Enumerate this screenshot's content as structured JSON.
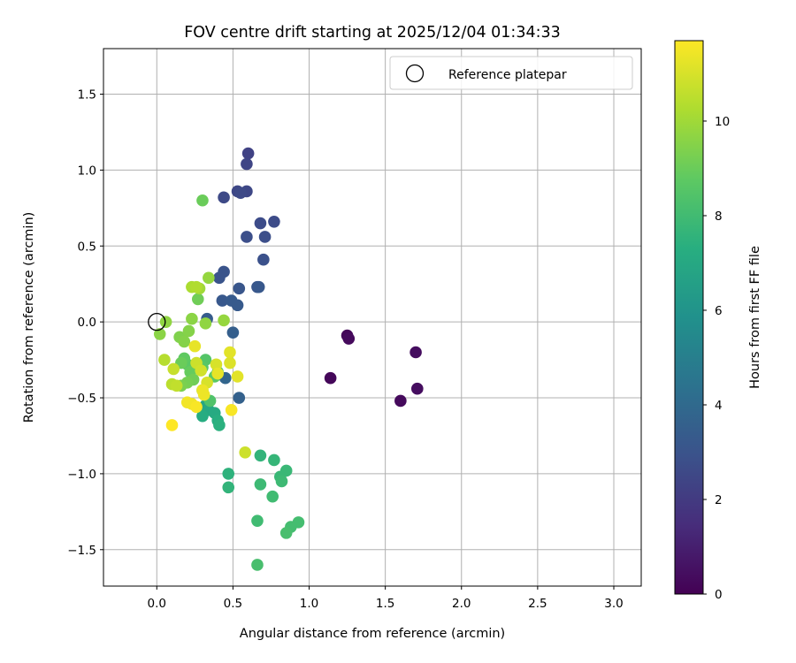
{
  "chart_data": {
    "type": "scatter",
    "title": "FOV centre drift starting at 2025/12/04 01:34:33",
    "xlabel": "Angular distance from reference (arcmin)",
    "ylabel": "Rotation from reference (arcmin)",
    "xlim": [
      -0.35,
      3.18
    ],
    "ylim": [
      -1.74,
      1.8
    ],
    "x_ticks": [
      "0.0",
      "0.5",
      "1.0",
      "1.5",
      "2.0",
      "2.5",
      "3.0"
    ],
    "y_ticks": [
      "−1.5",
      "−1.0",
      "−0.5",
      "0.0",
      "0.5",
      "1.0",
      "1.5"
    ],
    "grid": true,
    "legend": {
      "location": "top-right",
      "entries": [
        "Reference platepar"
      ]
    },
    "reference_point": {
      "x": 0.0,
      "y": 0.0
    },
    "colorbar": {
      "label": "Hours from first FF file",
      "colormap": "viridis",
      "min": 0,
      "max": 11.7,
      "ticks": [
        "0",
        "2",
        "4",
        "6",
        "8",
        "10"
      ]
    },
    "points": [
      {
        "x": 1.14,
        "y": -0.37,
        "t": 0.2
      },
      {
        "x": 1.25,
        "y": -0.09,
        "t": 0.2
      },
      {
        "x": 1.26,
        "y": -0.11,
        "t": 0.3
      },
      {
        "x": 1.6,
        "y": -0.52,
        "t": 0.3
      },
      {
        "x": 1.7,
        "y": -0.2,
        "t": 0.4
      },
      {
        "x": 1.71,
        "y": -0.44,
        "t": 0.4
      },
      {
        "x": 0.6,
        "y": 1.11,
        "t": 2.3
      },
      {
        "x": 0.59,
        "y": 1.04,
        "t": 2.4
      },
      {
        "x": 0.53,
        "y": 0.86,
        "t": 2.5
      },
      {
        "x": 0.59,
        "y": 0.86,
        "t": 2.5
      },
      {
        "x": 0.55,
        "y": 0.85,
        "t": 2.6
      },
      {
        "x": 0.44,
        "y": 0.82,
        "t": 2.6
      },
      {
        "x": 0.68,
        "y": 0.65,
        "t": 2.7
      },
      {
        "x": 0.77,
        "y": 0.66,
        "t": 2.7
      },
      {
        "x": 0.59,
        "y": 0.56,
        "t": 2.8
      },
      {
        "x": 0.71,
        "y": 0.56,
        "t": 2.8
      },
      {
        "x": 0.7,
        "y": 0.41,
        "t": 2.9
      },
      {
        "x": 0.44,
        "y": 0.33,
        "t": 3.0
      },
      {
        "x": 0.41,
        "y": 0.29,
        "t": 3.0
      },
      {
        "x": 0.54,
        "y": 0.22,
        "t": 3.1
      },
      {
        "x": 0.66,
        "y": 0.23,
        "t": 3.1
      },
      {
        "x": 0.67,
        "y": 0.23,
        "t": 3.2
      },
      {
        "x": 0.43,
        "y": 0.14,
        "t": 3.2
      },
      {
        "x": 0.49,
        "y": 0.14,
        "t": 3.3
      },
      {
        "x": 0.53,
        "y": 0.11,
        "t": 3.3
      },
      {
        "x": 0.33,
        "y": 0.02,
        "t": 3.4
      },
      {
        "x": 0.5,
        "y": -0.07,
        "t": 3.5
      },
      {
        "x": 0.54,
        "y": -0.5,
        "t": 3.6
      },
      {
        "x": 0.45,
        "y": -0.37,
        "t": 3.8
      },
      {
        "x": 0.32,
        "y": -0.55,
        "t": 6.9
      },
      {
        "x": 0.34,
        "y": -0.58,
        "t": 7.0
      },
      {
        "x": 0.38,
        "y": -0.6,
        "t": 7.1
      },
      {
        "x": 0.3,
        "y": -0.62,
        "t": 7.2
      },
      {
        "x": 0.4,
        "y": -0.65,
        "t": 7.3
      },
      {
        "x": 0.41,
        "y": -0.68,
        "t": 7.4
      },
      {
        "x": 0.47,
        "y": -1.0,
        "t": 7.5
      },
      {
        "x": 0.47,
        "y": -1.09,
        "t": 7.6
      },
      {
        "x": 0.68,
        "y": -0.88,
        "t": 7.6
      },
      {
        "x": 0.77,
        "y": -0.91,
        "t": 7.7
      },
      {
        "x": 0.85,
        "y": -0.98,
        "t": 7.8
      },
      {
        "x": 0.81,
        "y": -1.02,
        "t": 7.8
      },
      {
        "x": 0.82,
        "y": -1.05,
        "t": 7.9
      },
      {
        "x": 0.68,
        "y": -1.07,
        "t": 7.9
      },
      {
        "x": 0.76,
        "y": -1.15,
        "t": 8.0
      },
      {
        "x": 0.66,
        "y": -1.31,
        "t": 8.0
      },
      {
        "x": 0.93,
        "y": -1.32,
        "t": 8.1
      },
      {
        "x": 0.88,
        "y": -1.35,
        "t": 8.1
      },
      {
        "x": 0.85,
        "y": -1.39,
        "t": 8.2
      },
      {
        "x": 0.66,
        "y": -1.6,
        "t": 8.2
      },
      {
        "x": 0.3,
        "y": 0.8,
        "t": 9.0
      },
      {
        "x": 0.27,
        "y": 0.15,
        "t": 9.1
      },
      {
        "x": 0.35,
        "y": -0.52,
        "t": 8.4
      },
      {
        "x": 0.32,
        "y": -0.25,
        "t": 8.5
      },
      {
        "x": 0.3,
        "y": -0.3,
        "t": 8.6
      },
      {
        "x": 0.2,
        "y": -0.28,
        "t": 8.7
      },
      {
        "x": 0.18,
        "y": -0.24,
        "t": 8.8
      },
      {
        "x": 0.22,
        "y": -0.33,
        "t": 8.9
      },
      {
        "x": 0.16,
        "y": -0.27,
        "t": 9.0
      },
      {
        "x": 0.4,
        "y": -0.33,
        "t": 8.6
      },
      {
        "x": 0.38,
        "y": -0.36,
        "t": 8.7
      },
      {
        "x": 0.3,
        "y": -0.45,
        "t": 8.9
      },
      {
        "x": 0.24,
        "y": -0.38,
        "t": 9.1
      },
      {
        "x": 0.2,
        "y": -0.4,
        "t": 9.2
      },
      {
        "x": 0.16,
        "y": -0.42,
        "t": 9.3
      },
      {
        "x": 0.15,
        "y": -0.1,
        "t": 9.4
      },
      {
        "x": 0.18,
        "y": -0.13,
        "t": 9.5
      },
      {
        "x": 0.21,
        "y": -0.06,
        "t": 9.5
      },
      {
        "x": 0.23,
        "y": 0.02,
        "t": 9.6
      },
      {
        "x": 0.02,
        "y": -0.08,
        "t": 9.6
      },
      {
        "x": 0.06,
        "y": 0.0,
        "t": 9.7
      },
      {
        "x": 0.32,
        "y": -0.01,
        "t": 9.7
      },
      {
        "x": 0.44,
        "y": 0.01,
        "t": 9.8
      },
      {
        "x": 0.34,
        "y": 0.29,
        "t": 9.8
      },
      {
        "x": 0.28,
        "y": 0.22,
        "t": 10.0
      },
      {
        "x": 0.23,
        "y": 0.23,
        "t": 10.2
      },
      {
        "x": 0.26,
        "y": 0.23,
        "t": 10.3
      },
      {
        "x": 0.05,
        "y": -0.25,
        "t": 10.4
      },
      {
        "x": 0.1,
        "y": -0.41,
        "t": 10.5
      },
      {
        "x": 0.13,
        "y": -0.42,
        "t": 10.6
      },
      {
        "x": 0.11,
        "y": -0.31,
        "t": 10.7
      },
      {
        "x": 0.26,
        "y": -0.27,
        "t": 10.8
      },
      {
        "x": 0.29,
        "y": -0.32,
        "t": 10.9
      },
      {
        "x": 0.33,
        "y": -0.4,
        "t": 11.0
      },
      {
        "x": 0.39,
        "y": -0.28,
        "t": 11.0
      },
      {
        "x": 0.48,
        "y": -0.27,
        "t": 11.1
      },
      {
        "x": 0.48,
        "y": -0.2,
        "t": 11.2
      },
      {
        "x": 0.53,
        "y": -0.36,
        "t": 11.2
      },
      {
        "x": 0.4,
        "y": -0.34,
        "t": 11.3
      },
      {
        "x": 0.25,
        "y": -0.16,
        "t": 11.3
      },
      {
        "x": 0.31,
        "y": -0.48,
        "t": 11.4
      },
      {
        "x": 0.3,
        "y": -0.45,
        "t": 11.4
      },
      {
        "x": 0.2,
        "y": -0.53,
        "t": 11.5
      },
      {
        "x": 0.23,
        "y": -0.54,
        "t": 11.5
      },
      {
        "x": 0.26,
        "y": -0.56,
        "t": 11.6
      },
      {
        "x": 0.49,
        "y": -0.58,
        "t": 11.6
      },
      {
        "x": 0.1,
        "y": -0.68,
        "t": 11.7
      },
      {
        "x": 0.58,
        "y": -0.86,
        "t": 10.8
      }
    ]
  }
}
